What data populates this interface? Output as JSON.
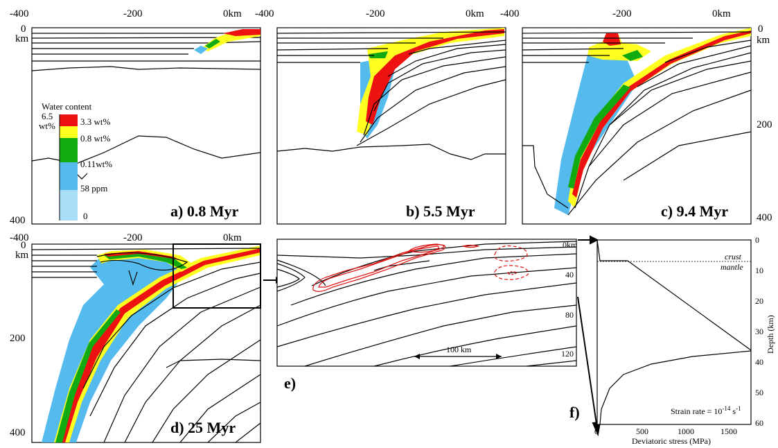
{
  "panels": [
    {
      "id": "a",
      "label": "a) 0.8 Myr"
    },
    {
      "id": "b",
      "label": "b) 5.5 Myr"
    },
    {
      "id": "c",
      "label": "c) 9.4 Myr"
    },
    {
      "id": "d",
      "label": "d) 25 Myr"
    },
    {
      "id": "e",
      "label": "e)"
    },
    {
      "id": "f",
      "label": "f)"
    }
  ],
  "ticks": {
    "x_m400": "-400",
    "x_m200": "-200",
    "x_0": "0km",
    "depth_0": "0",
    "depth_km": "km",
    "depth_200": "200",
    "depth_400": "400"
  },
  "legend": {
    "title": "Water content",
    "top_value": "6.5",
    "top_unit": "wt%",
    "levels": [
      "3.3 wt%",
      "0.8 wt%",
      "0.11wt%",
      "58 ppm",
      "0"
    ],
    "colors": [
      "#ee1111",
      "#ffff22",
      "#11aa11",
      "#55bbee",
      "#aaddf8"
    ]
  },
  "panel_e": {
    "depth_labels": [
      "0km",
      "40",
      "80",
      "120"
    ],
    "scale_bar": "100 km"
  },
  "panel_f": {
    "crust_label": "crust",
    "mantle_label": "mantle",
    "strain_rate": "Strain rate = 10",
    "strain_rate_exp1": "-14",
    "strain_rate_s": " s",
    "strain_rate_exp2": "-1",
    "xlabel": "Deviatoric stress (MPa)",
    "ylabel": "Depth (km)",
    "xticks": [
      "0",
      "500",
      "1000",
      "1500"
    ],
    "yticks": [
      "0",
      "10",
      "20",
      "30",
      "40",
      "50",
      "60"
    ]
  }
}
